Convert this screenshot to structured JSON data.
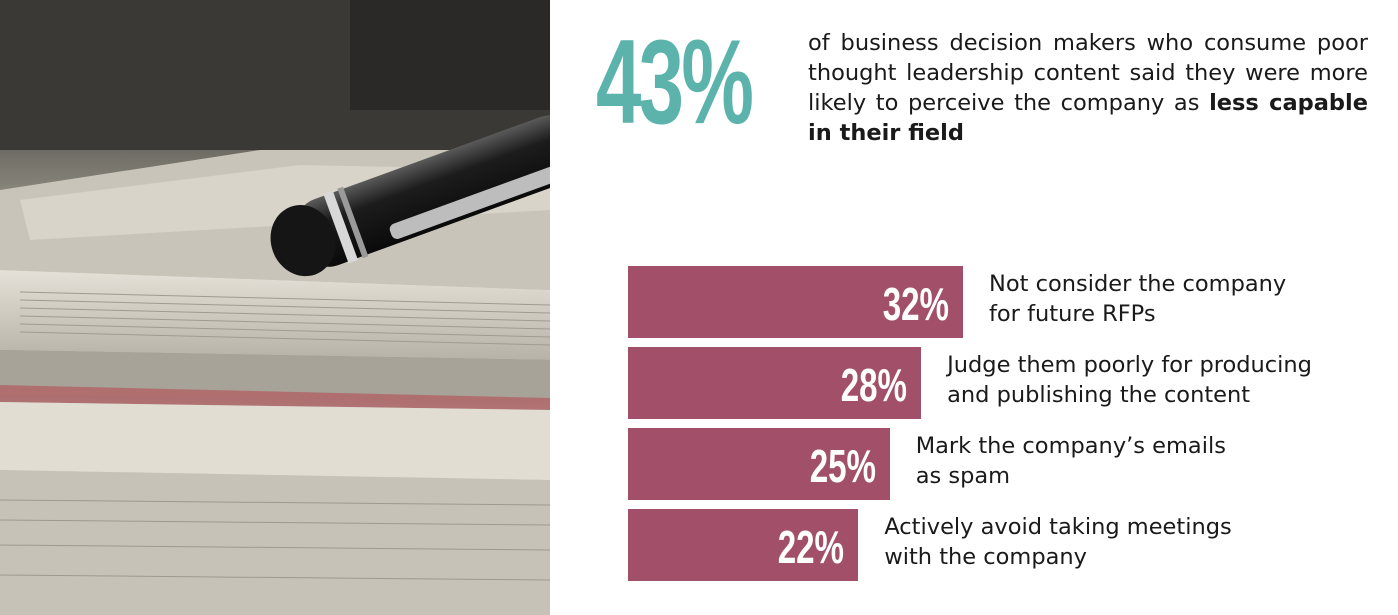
{
  "headline": {
    "value": "43%",
    "text_before": "of business decision makers who consume poor thought leadership content said they were more likely to perceive the company as ",
    "text_bold": "less capable in their field"
  },
  "colors": {
    "accent_teal": "#5bb3ac",
    "bar": "#a24f6a",
    "text": "#1a1a1a"
  },
  "chart_data": {
    "type": "bar",
    "orientation": "horizontal",
    "categories": [
      "Not consider the company for future RFPs",
      "Judge them poorly for producing and publishing the content",
      "Mark the company’s emails as spam",
      "Actively avoid taking meetings with the company"
    ],
    "label_lines": [
      [
        "Not consider the company",
        "for future RFPs"
      ],
      [
        "Judge them poorly for producing",
        "and publishing the content"
      ],
      [
        "Mark the company’s emails",
        "as spam"
      ],
      [
        "Actively avoid taking meetings",
        "with the company"
      ]
    ],
    "values": [
      32,
      28,
      25,
      22
    ],
    "value_labels": [
      "32%",
      "28%",
      "25%",
      "22%"
    ],
    "unit": "%"
  }
}
